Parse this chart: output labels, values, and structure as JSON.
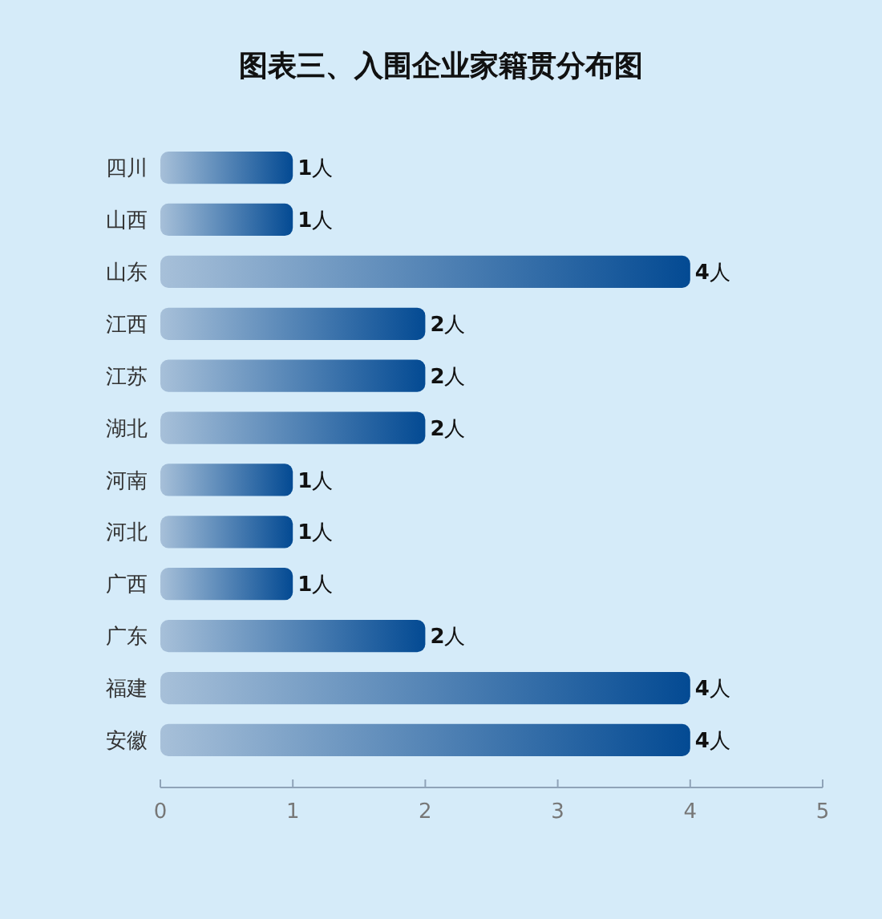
{
  "chart_data": {
    "type": "bar",
    "orientation": "horizontal",
    "title": "图表三、入围企业家籍贯分布图",
    "categories": [
      "四川",
      "山西",
      "山东",
      "江西",
      "江苏",
      "湖北",
      "河南",
      "河北",
      "广西",
      "广东",
      "福建",
      "安徽"
    ],
    "values": [
      1,
      1,
      4,
      2,
      2,
      2,
      1,
      1,
      1,
      2,
      4,
      4
    ],
    "value_labels": [
      "1人",
      "1人",
      "4人",
      "2人",
      "2人",
      "2人",
      "1人",
      "1人",
      "1人",
      "2人",
      "4人",
      "4人"
    ],
    "color": "#034a93",
    "xlim": [
      0,
      5
    ],
    "xticks": [
      0,
      1,
      2,
      3,
      4,
      5
    ],
    "grid": false
  }
}
